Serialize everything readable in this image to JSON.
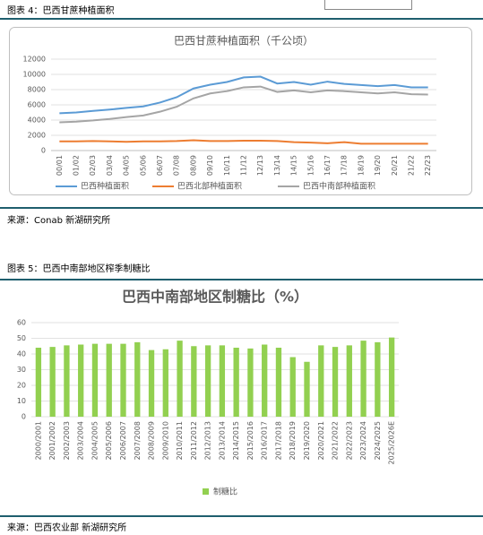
{
  "figures": [
    {
      "caption": "图表 4：巴西甘蔗种植面积",
      "source": "来源：Conab  新湖研究所"
    },
    {
      "caption": "图表 5：巴西中南部地区榨季制糖比",
      "source": "来源：巴西农业部  新湖研究所"
    }
  ],
  "chart_data": [
    {
      "type": "line",
      "title": "巴西甘蔗种植面积（千公顷）",
      "categories": [
        "00/01",
        "01/02",
        "02/03",
        "03/04",
        "04/05",
        "05/06",
        "06/07",
        "07/08",
        "08/09",
        "09/10",
        "10/11",
        "11/12",
        "12/13",
        "13/14",
        "14/15",
        "15/16",
        "16/17",
        "17/18",
        "18/19",
        "19/20",
        "20/21",
        "21/22",
        "22/23"
      ],
      "series": [
        {
          "name": "巴西种植面积",
          "color": "#5b9bd5",
          "values": [
            4900,
            5000,
            5200,
            5380,
            5600,
            5800,
            6300,
            7000,
            8150,
            8650,
            9000,
            9600,
            9700,
            8800,
            9000,
            8650,
            9050,
            8750,
            8600,
            8450,
            8600,
            8300,
            8300
          ]
        },
        {
          "name": "巴西北部种植面积",
          "color": "#ed7d31",
          "values": [
            1200,
            1200,
            1250,
            1200,
            1150,
            1200,
            1200,
            1250,
            1350,
            1250,
            1250,
            1300,
            1300,
            1250,
            1100,
            1050,
            950,
            1100,
            900,
            900,
            900,
            900,
            900
          ]
        },
        {
          "name": "巴西中南部种植面积",
          "color": "#a5a5a5",
          "values": [
            3700,
            3800,
            3950,
            4150,
            4400,
            4600,
            5100,
            5750,
            6850,
            7500,
            7800,
            8300,
            8400,
            7700,
            7900,
            7650,
            7900,
            7800,
            7650,
            7500,
            7650,
            7400,
            7350
          ]
        }
      ],
      "ylim": [
        0,
        12000
      ],
      "yticks": [
        0,
        2000,
        4000,
        6000,
        8000,
        10000,
        12000
      ],
      "grid": true,
      "legend": "bottom"
    },
    {
      "type": "bar",
      "title": "巴西中南部地区制糖比（%）",
      "categories": [
        "2000/2001",
        "2001/2002",
        "2002/2003",
        "2003/2004",
        "2004/2005",
        "2005/2006",
        "2006/2007",
        "2007/2008",
        "2008/2009",
        "2009/2010",
        "2010/2011",
        "2011/2012",
        "2012/2013",
        "2013/2014",
        "2014/2015",
        "2015/2016",
        "2016/2017",
        "2017/2018",
        "2018/2019",
        "2019/2020",
        "2020/2021",
        "2021/2022",
        "2022/2023",
        "2023/2024",
        "2024/2025",
        "2025/2026E"
      ],
      "series": [
        {
          "name": "制糖比",
          "color": "#92d050",
          "values": [
            44,
            44.5,
            45.5,
            46,
            46.5,
            46.5,
            46.5,
            47.5,
            42.5,
            43,
            48.5,
            45,
            45.5,
            45.5,
            44,
            43.5,
            46,
            44,
            38,
            35,
            45.5,
            44.5,
            45.5,
            48.5,
            47.5,
            50.5
          ]
        }
      ],
      "ylim": [
        0,
        60
      ],
      "yticks": [
        0,
        10,
        20,
        30,
        40,
        50,
        60
      ],
      "grid": true,
      "legend": "bottom"
    }
  ]
}
